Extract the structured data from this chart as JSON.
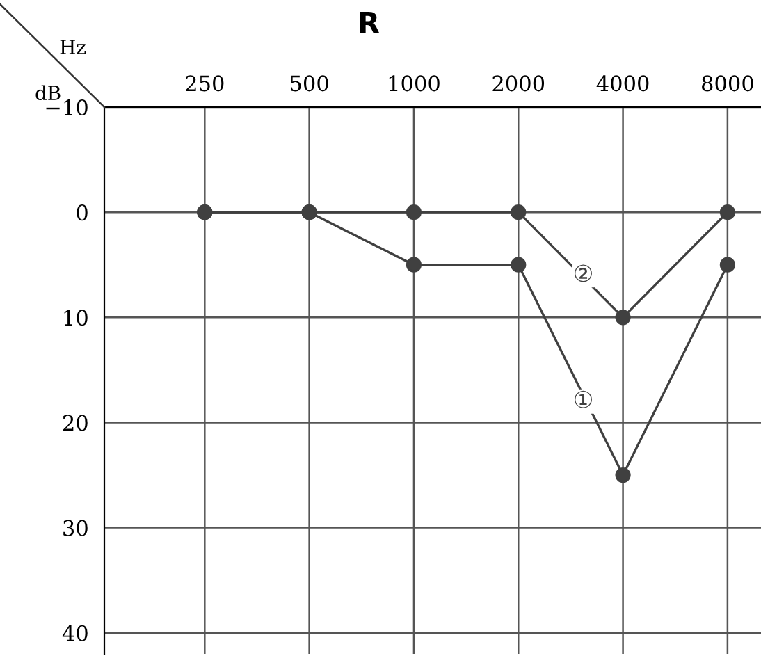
{
  "chart_data": {
    "type": "line",
    "title": "R",
    "xlabel": "Hz",
    "ylabel": "dB",
    "categories": [
      "250",
      "500",
      "1000",
      "2000",
      "4000",
      "8000"
    ],
    "series": [
      {
        "name": "①",
        "color": "#404040",
        "values": [
          0,
          0,
          5,
          5,
          25,
          5
        ]
      },
      {
        "name": "②",
        "color": "#404040",
        "values": [
          0,
          0,
          0,
          0,
          10,
          0
        ]
      }
    ],
    "ylim": [
      42,
      -10
    ],
    "yticks": [
      {
        "value": -10,
        "label": "−10"
      },
      0,
      10,
      20,
      30,
      40
    ],
    "grid": true,
    "marker": "circle",
    "line_style": "solid",
    "legend": false
  }
}
